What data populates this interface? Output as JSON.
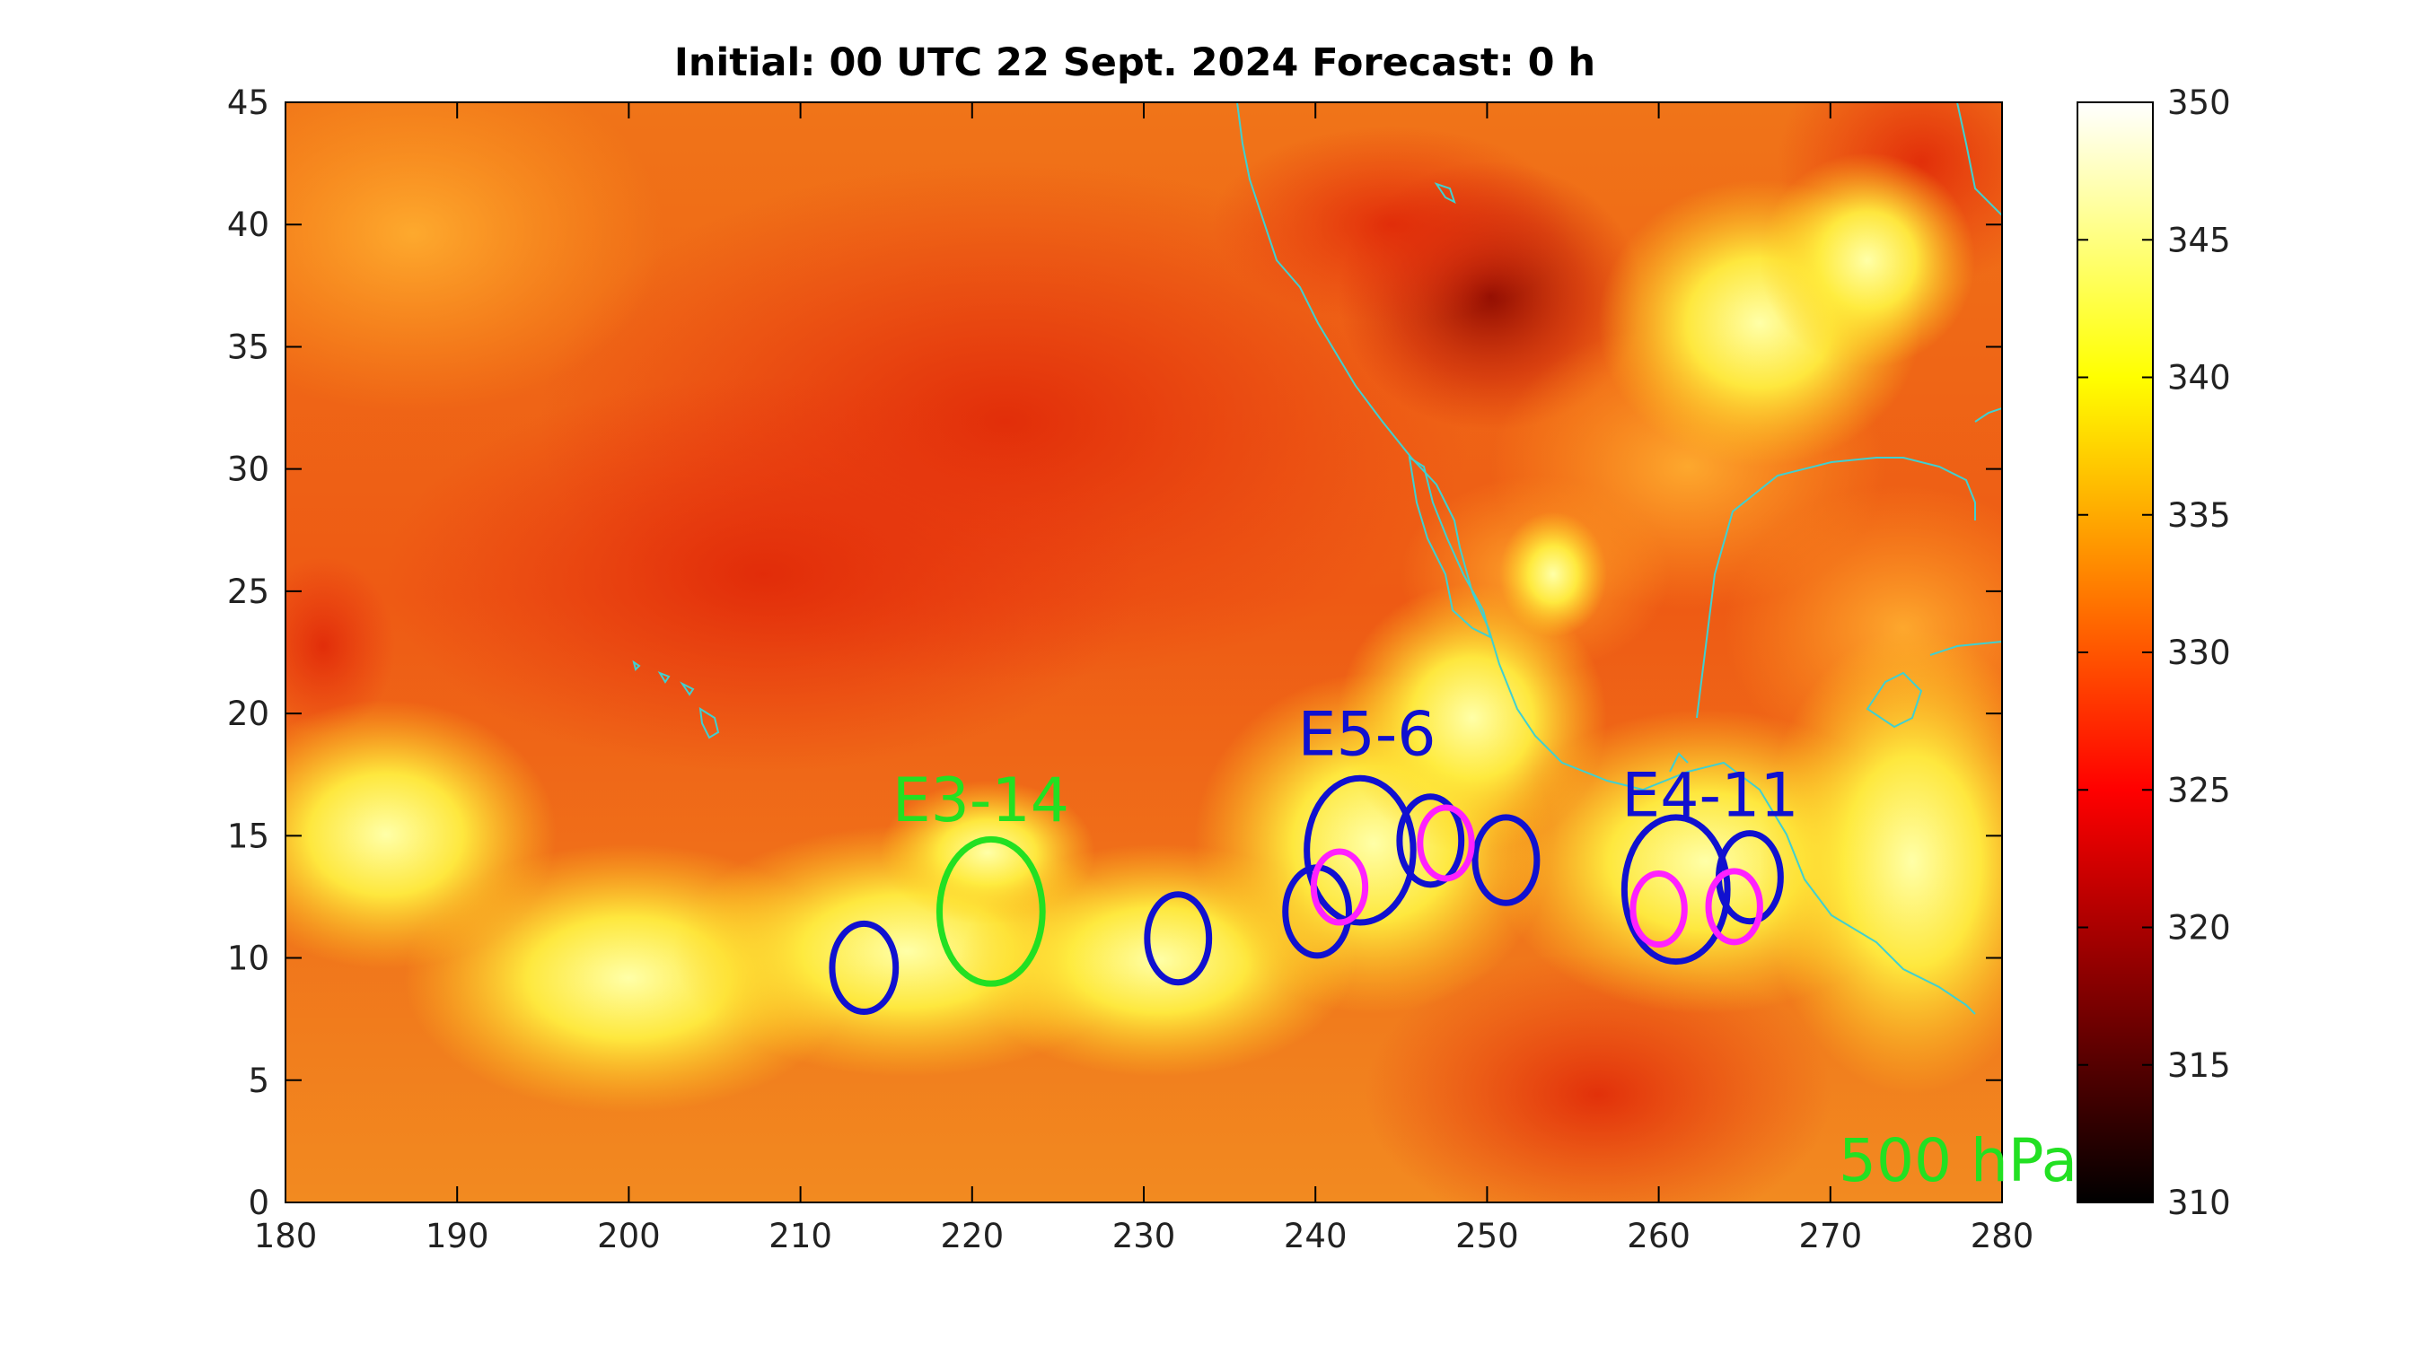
{
  "title": "Initial: 00 UTC 22 Sept. 2024 Forecast: 0 h",
  "level_label": "500 hPa",
  "map": {
    "x_ticks": [
      "180",
      "190",
      "200",
      "210",
      "220",
      "230",
      "240",
      "250",
      "260",
      "270",
      "280"
    ],
    "y_ticks": [
      "0",
      "5",
      "10",
      "15",
      "20",
      "25",
      "30",
      "35",
      "40",
      "45"
    ],
    "x_range": [
      180,
      280
    ],
    "y_range": [
      0,
      45
    ],
    "coastline_color": "#40d0d0"
  },
  "colorbar": {
    "ticks": [
      "310",
      "315",
      "320",
      "325",
      "330",
      "335",
      "340",
      "345",
      "350"
    ],
    "range": [
      310,
      350
    ],
    "colormap": "hot"
  },
  "labels": [
    {
      "text": "E3-14",
      "lon": 220.5,
      "lat": 15.6,
      "color": "#22e022"
    },
    {
      "text": "E5-6",
      "lon": 243.0,
      "lat": 18.3,
      "color": "#1010d0"
    },
    {
      "text": "E4-11",
      "lon": 263.0,
      "lat": 15.8,
      "color": "#1010d0"
    }
  ],
  "circles": [
    {
      "lon": 221.1,
      "lat": 11.9,
      "rx": 3.0,
      "ry": 2.95,
      "color": "#22e022"
    },
    {
      "lon": 213.7,
      "lat": 9.6,
      "rx": 1.85,
      "ry": 1.8,
      "color": "#1010d0"
    },
    {
      "lon": 232.0,
      "lat": 10.8,
      "rx": 1.8,
      "ry": 1.8,
      "color": "#1010d0"
    },
    {
      "lon": 240.1,
      "lat": 11.9,
      "rx": 1.85,
      "ry": 1.8,
      "color": "#1010d0"
    },
    {
      "lon": 242.6,
      "lat": 14.4,
      "rx": 3.1,
      "ry": 2.95,
      "color": "#1010d0"
    },
    {
      "lon": 246.7,
      "lat": 14.8,
      "rx": 1.8,
      "ry": 1.8,
      "color": "#1010d0"
    },
    {
      "lon": 251.1,
      "lat": 14.0,
      "rx": 1.8,
      "ry": 1.75,
      "color": "#1010d0"
    },
    {
      "lon": 261.0,
      "lat": 12.8,
      "rx": 3.0,
      "ry": 2.95,
      "color": "#1010d0"
    },
    {
      "lon": 265.3,
      "lat": 13.3,
      "rx": 1.8,
      "ry": 1.8,
      "color": "#1010d0"
    },
    {
      "lon": 241.4,
      "lat": 12.9,
      "rx": 1.5,
      "ry": 1.45,
      "color": "#ff20ff"
    },
    {
      "lon": 247.6,
      "lat": 14.7,
      "rx": 1.5,
      "ry": 1.45,
      "color": "#ff20ff"
    },
    {
      "lon": 260.0,
      "lat": 12.0,
      "rx": 1.5,
      "ry": 1.45,
      "color": "#ff20ff"
    },
    {
      "lon": 264.4,
      "lat": 12.1,
      "rx": 1.5,
      "ry": 1.45,
      "color": "#ff20ff"
    }
  ]
}
